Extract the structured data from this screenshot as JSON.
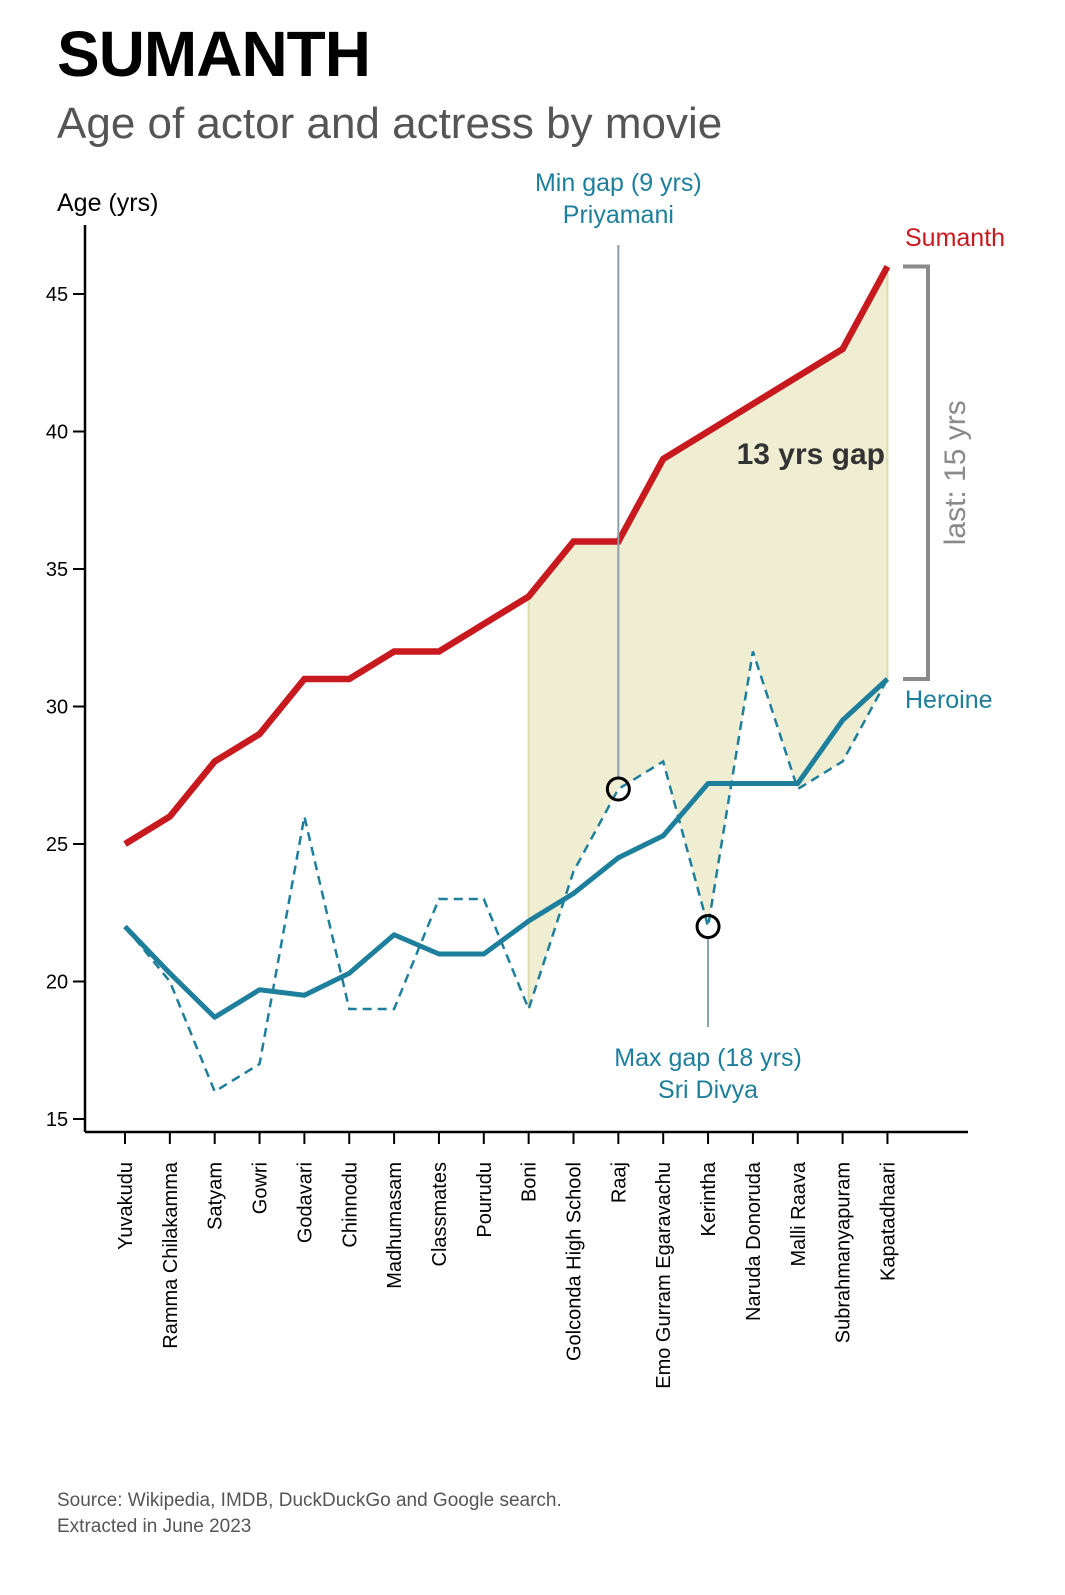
{
  "title": "SUMANTH",
  "subtitle": "Age of actor and actress by movie",
  "source_line1": "Source: Wikipedia, IMDB, DuckDuckGo and Google search.",
  "source_line2": "Extracted in June 2023",
  "colors": {
    "actor": "#c8191e",
    "heroine": "#1e7f9c",
    "gap_fill": "#ecebcb",
    "bracket": "#8a8a8a",
    "annotation_line": "#8aa0aa"
  },
  "chart_data": {
    "type": "line",
    "ylabel": "Age (yrs)",
    "ylim": [
      15,
      47
    ],
    "yticks": [
      15,
      20,
      25,
      30,
      35,
      40,
      45
    ],
    "categories": [
      "Yuvakudu",
      "Ramma Chilakamma",
      "Satyam",
      "Gowri",
      "Godavari",
      "Chinnodu",
      "Madhumasam",
      "Classmates",
      "Pourudu",
      "Boni",
      "Golconda High School",
      "Raaj",
      "Emo Gurram Egaravachu",
      "Kerintha",
      "Naruda Donoruda",
      "Malli Raava",
      "Subrahmanyapuram",
      "Kapatadhaari"
    ],
    "series": [
      {
        "name": "Sumanth",
        "style": "solid",
        "values": [
          25,
          26,
          28,
          29,
          31,
          31,
          32,
          32,
          33,
          34,
          36,
          36,
          39,
          40,
          41,
          42,
          43,
          46
        ]
      },
      {
        "name": "Heroine",
        "style": "solid",
        "values": [
          22,
          20.3,
          18.7,
          19.7,
          19.5,
          20.3,
          21.7,
          21,
          21,
          22.2,
          23.2,
          24.5,
          25.3,
          27.2,
          27.2,
          27.2,
          29.5,
          31
        ]
      },
      {
        "name": "",
        "style": "dashed",
        "values": [
          22,
          20,
          16,
          17,
          26,
          19,
          19,
          23,
          23,
          19,
          24,
          27,
          28,
          22,
          32,
          27,
          28,
          31
        ]
      }
    ],
    "annotations": {
      "min_gap": {
        "line1": "Min gap (9 yrs)",
        "line2": "Priyamani",
        "category": "Raaj",
        "value": 27
      },
      "max_gap": {
        "line1": "Max gap (18 yrs)",
        "line2": "Sri Divya",
        "category": "Kerintha",
        "value": 22
      },
      "gap_label": "13 yrs gap",
      "last_label": "last: 15 yrs",
      "shaded_from": "Boni",
      "actor_label": "Sumanth",
      "heroine_label": "Heroine"
    }
  }
}
